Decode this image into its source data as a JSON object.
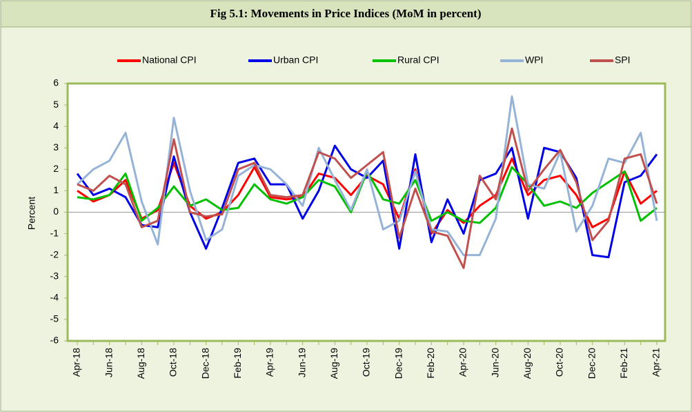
{
  "chart_data": {
    "type": "line",
    "title": "Fig 5.1: Movements in Price Indices (MoM in percent)",
    "y_label": "Percent",
    "categories": [
      "Apr-18",
      null,
      "Jun-18",
      null,
      "Aug-18",
      null,
      "Oct-18",
      null,
      "Dec-18",
      null,
      "Feb-19",
      null,
      "Apr-19",
      null,
      "Jun-19",
      null,
      "Aug-19",
      null,
      "Oct-19",
      null,
      "Dec-19",
      null,
      "Feb-20",
      null,
      "Apr-20",
      null,
      "Jun-20",
      null,
      "Aug-20",
      null,
      "Oct-20",
      null,
      "Dec-20",
      null,
      "Feb-21",
      null,
      "Apr-21"
    ],
    "series": [
      {
        "name": "National CPI",
        "color": "#ff0000",
        "values": [
          1.0,
          0.5,
          0.8,
          1.5,
          -0.3,
          0.1,
          2.3,
          0.3,
          -0.3,
          0.0,
          0.8,
          2.1,
          0.7,
          0.6,
          0.7,
          1.8,
          1.6,
          0.8,
          1.7,
          1.3,
          -0.3,
          2.0,
          -1.0,
          0.1,
          -0.5,
          0.3,
          0.8,
          2.5,
          0.8,
          1.5,
          1.7,
          0.8,
          -0.7,
          -0.3,
          1.9,
          0.4,
          1.0
        ]
      },
      {
        "name": "Urban CPI",
        "color": "#0000e6",
        "values": [
          1.8,
          0.8,
          1.1,
          0.7,
          -0.6,
          -0.7,
          2.6,
          0.0,
          -1.7,
          0.2,
          2.3,
          2.5,
          1.3,
          1.3,
          -0.3,
          1.0,
          3.1,
          2.0,
          1.6,
          2.4,
          -1.7,
          2.7,
          -1.4,
          0.6,
          -1.0,
          1.5,
          1.8,
          3.0,
          -0.3,
          3.0,
          2.8,
          1.6,
          -2.0,
          -2.1,
          1.4,
          1.7,
          2.7
        ]
      },
      {
        "name": "Rural CPI",
        "color": "#00c000",
        "values": [
          0.7,
          0.6,
          0.8,
          1.8,
          -0.4,
          0.2,
          1.2,
          0.3,
          0.6,
          0.1,
          0.2,
          1.3,
          0.6,
          0.4,
          0.7,
          1.5,
          1.2,
          0.0,
          1.9,
          0.6,
          0.4,
          1.5,
          -0.4,
          0.0,
          -0.4,
          -0.5,
          0.2,
          2.1,
          1.3,
          0.3,
          0.5,
          0.2,
          0.9,
          1.4,
          1.9,
          -0.4,
          0.2
        ]
      },
      {
        "name": "WPI",
        "color": "#95b3d7",
        "values": [
          1.3,
          2.0,
          2.4,
          3.7,
          0.5,
          -1.5,
          4.4,
          1.0,
          -1.3,
          -0.8,
          1.7,
          2.2,
          2.0,
          1.3,
          0.3,
          3.0,
          1.5,
          0.1,
          2.0,
          -0.8,
          -0.4,
          1.9,
          -0.8,
          -0.9,
          -2.0,
          -2.0,
          -0.3,
          5.4,
          1.3,
          1.1,
          2.8,
          -0.9,
          0.3,
          2.5,
          2.3,
          3.7,
          -0.4
        ]
      },
      {
        "name": "SPI",
        "color": "#c0504d",
        "values": [
          1.3,
          1.0,
          1.7,
          1.3,
          -0.7,
          -0.4,
          3.4,
          0.0,
          -0.2,
          -0.1,
          2.0,
          2.3,
          0.8,
          0.7,
          0.8,
          2.8,
          2.5,
          1.6,
          2.2,
          2.8,
          -1.2,
          1.1,
          -0.9,
          -1.1,
          -2.6,
          1.7,
          0.6,
          3.9,
          1.0,
          2.0,
          2.9,
          1.4,
          -1.3,
          -0.4,
          2.5,
          2.7,
          0.4
        ]
      }
    ],
    "ylim": [
      -6,
      6
    ],
    "yticks": [
      -6,
      -5,
      -4,
      -3,
      -2,
      -1,
      0,
      1,
      2,
      3,
      4,
      5,
      6
    ],
    "legend": "top",
    "zero_line": true
  }
}
